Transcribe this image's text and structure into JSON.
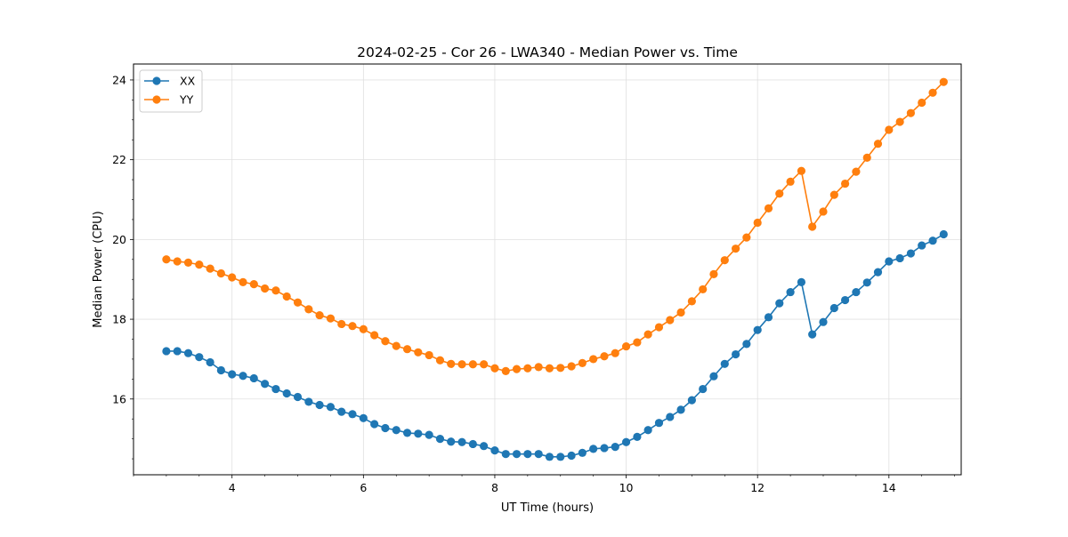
{
  "chart_data": {
    "type": "line",
    "title": "2024-02-25 - Cor 26 - LWA340 - Median Power vs. Time",
    "xlabel": "UT Time (hours)",
    "ylabel": "Median Power (CPU)",
    "xlim": [
      2.5,
      15.1
    ],
    "ylim": [
      14.1,
      24.4
    ],
    "xticks": [
      4,
      6,
      8,
      10,
      12,
      14
    ],
    "xtick_labels": [
      "4",
      "6",
      "8",
      "10",
      "12",
      "14"
    ],
    "xminor_step": 0.5,
    "yticks": [
      16,
      18,
      20,
      22,
      24
    ],
    "ytick_labels": [
      "16",
      "18",
      "20",
      "22",
      "24"
    ],
    "yminor_step": 0.5,
    "grid": true,
    "legend_position": "top-left",
    "x": [
      3.0,
      3.167,
      3.333,
      3.5,
      3.667,
      3.833,
      4.0,
      4.167,
      4.333,
      4.5,
      4.667,
      4.833,
      5.0,
      5.167,
      5.333,
      5.5,
      5.667,
      5.833,
      6.0,
      6.167,
      6.333,
      6.5,
      6.667,
      6.833,
      7.0,
      7.167,
      7.333,
      7.5,
      7.667,
      7.833,
      8.0,
      8.167,
      8.333,
      8.5,
      8.667,
      8.833,
      9.0,
      9.167,
      9.333,
      9.5,
      9.667,
      9.833,
      10.0,
      10.167,
      10.333,
      10.5,
      10.667,
      10.833,
      11.0,
      11.167,
      11.333,
      11.5,
      11.667,
      11.833,
      12.0,
      12.167,
      12.333,
      12.5,
      12.667,
      12.833,
      13.0,
      13.167,
      13.333,
      13.5,
      13.667,
      13.833,
      14.0,
      14.167,
      14.333,
      14.5,
      14.667,
      14.833
    ],
    "series": [
      {
        "name": "XX",
        "color": "#1f77b4",
        "values": [
          17.2,
          17.2,
          17.15,
          17.05,
          16.92,
          16.72,
          16.62,
          16.58,
          16.52,
          16.38,
          16.25,
          16.14,
          16.05,
          15.93,
          15.85,
          15.8,
          15.68,
          15.62,
          15.52,
          15.37,
          15.27,
          15.22,
          15.15,
          15.13,
          15.1,
          15.0,
          14.93,
          14.92,
          14.87,
          14.82,
          14.71,
          14.62,
          14.62,
          14.62,
          14.62,
          14.55,
          14.55,
          14.58,
          14.65,
          14.75,
          14.77,
          14.8,
          14.92,
          15.05,
          15.22,
          15.4,
          15.55,
          15.73,
          15.97,
          16.25,
          16.57,
          16.88,
          17.12,
          17.38,
          17.73,
          18.05,
          18.4,
          18.68,
          18.93,
          17.62,
          17.93,
          18.28,
          18.48,
          18.68,
          18.92,
          19.18,
          19.45,
          19.53,
          19.65,
          19.85,
          19.97,
          20.13
        ]
      },
      {
        "name": "YY",
        "color": "#ff7f0e",
        "values": [
          19.5,
          19.45,
          19.42,
          19.37,
          19.27,
          19.15,
          19.05,
          18.93,
          18.88,
          18.77,
          18.72,
          18.57,
          18.42,
          18.25,
          18.1,
          18.02,
          17.88,
          17.83,
          17.75,
          17.6,
          17.45,
          17.33,
          17.25,
          17.17,
          17.1,
          16.97,
          16.88,
          16.87,
          16.87,
          16.87,
          16.77,
          16.7,
          16.75,
          16.77,
          16.8,
          16.77,
          16.78,
          16.82,
          16.9,
          17.0,
          17.07,
          17.15,
          17.32,
          17.42,
          17.62,
          17.8,
          17.98,
          18.17,
          18.45,
          18.75,
          19.13,
          19.48,
          19.77,
          20.05,
          20.42,
          20.78,
          21.15,
          21.45,
          21.72,
          20.32,
          20.7,
          21.12,
          21.4,
          21.7,
          22.05,
          22.4,
          22.75,
          22.95,
          23.17,
          23.43,
          23.68,
          23.95
        ]
      }
    ]
  }
}
